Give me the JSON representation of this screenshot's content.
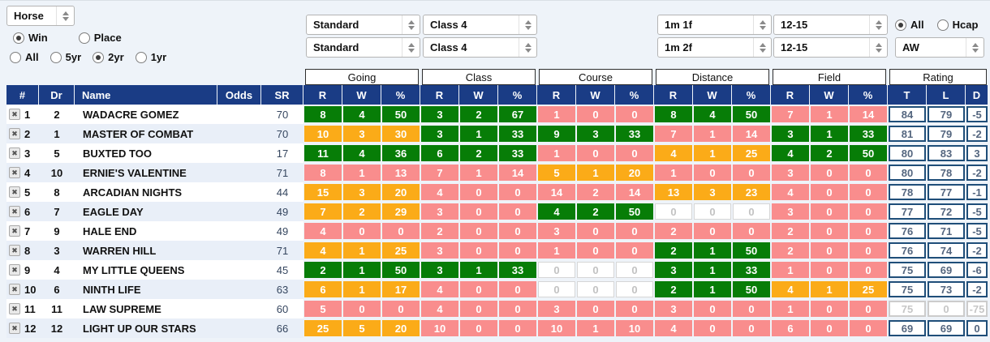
{
  "filters": {
    "entity_select": "Horse",
    "bet_type": {
      "options": [
        "Win",
        "Place"
      ],
      "selected": "Win"
    },
    "age_filter": {
      "options": [
        "All",
        "5yr",
        "2yr",
        "1yr"
      ],
      "selected": "2yr"
    },
    "going_select_1": "Standard",
    "class_select_1": "Class 4",
    "going_select_2": "Standard",
    "class_select_2": "Class 4",
    "distance_select_1": "1m 1f",
    "field_select_1": "12-15",
    "distance_select_2": "1m 2f",
    "field_select_2": "12-15",
    "race_type": {
      "options": [
        "All",
        "Hcap"
      ],
      "selected": "All"
    },
    "surface_select": "AW"
  },
  "colors": {
    "green": "#077d07",
    "amber": "#fbab18",
    "red": "#f98d8d",
    "header_navy": "#1a3c85",
    "rating_border": "#1f4e79"
  },
  "table": {
    "group_headers": [
      "Going",
      "Class",
      "Course",
      "Distance",
      "Field",
      "Rating"
    ],
    "left_headers": [
      "#",
      "Dr",
      "Name",
      "Odds",
      "SR"
    ],
    "stat_subheaders": [
      "R",
      "W",
      "%"
    ],
    "rating_subheaders": [
      "T",
      "L",
      "D"
    ],
    "rows": [
      {
        "num": 1,
        "dr": 2,
        "name": "WADACRE GOMEZ",
        "odds": "",
        "sr": 70,
        "going": {
          "r": 8,
          "w": 4,
          "pct": 50,
          "color": "green"
        },
        "class": {
          "r": 3,
          "w": 2,
          "pct": 67,
          "color": "green"
        },
        "course": {
          "r": 1,
          "w": 0,
          "pct": 0,
          "color": "red"
        },
        "distance": {
          "r": 8,
          "w": 4,
          "pct": 50,
          "color": "green"
        },
        "field": {
          "r": 7,
          "w": 1,
          "pct": 14,
          "color": "red"
        },
        "rating": {
          "t": 84,
          "l": 79,
          "d": -5,
          "muted": false
        }
      },
      {
        "num": 2,
        "dr": 1,
        "name": "MASTER OF COMBAT",
        "odds": "",
        "sr": 70,
        "going": {
          "r": 10,
          "w": 3,
          "pct": 30,
          "color": "amber"
        },
        "class": {
          "r": 3,
          "w": 1,
          "pct": 33,
          "color": "green"
        },
        "course": {
          "r": 9,
          "w": 3,
          "pct": 33,
          "color": "green"
        },
        "distance": {
          "r": 7,
          "w": 1,
          "pct": 14,
          "color": "red"
        },
        "field": {
          "r": 3,
          "w": 1,
          "pct": 33,
          "color": "green"
        },
        "rating": {
          "t": 81,
          "l": 79,
          "d": -2,
          "muted": false
        }
      },
      {
        "num": 3,
        "dr": 5,
        "name": "BUXTED TOO",
        "odds": "",
        "sr": 17,
        "going": {
          "r": 11,
          "w": 4,
          "pct": 36,
          "color": "green"
        },
        "class": {
          "r": 6,
          "w": 2,
          "pct": 33,
          "color": "green"
        },
        "course": {
          "r": 1,
          "w": 0,
          "pct": 0,
          "color": "red"
        },
        "distance": {
          "r": 4,
          "w": 1,
          "pct": 25,
          "color": "amber"
        },
        "field": {
          "r": 4,
          "w": 2,
          "pct": 50,
          "color": "green"
        },
        "rating": {
          "t": 80,
          "l": 83,
          "d": 3,
          "muted": false
        }
      },
      {
        "num": 4,
        "dr": 10,
        "name": "ERNIE'S VALENTINE",
        "odds": "",
        "sr": 71,
        "going": {
          "r": 8,
          "w": 1,
          "pct": 13,
          "color": "red"
        },
        "class": {
          "r": 7,
          "w": 1,
          "pct": 14,
          "color": "red"
        },
        "course": {
          "r": 5,
          "w": 1,
          "pct": 20,
          "color": "amber"
        },
        "distance": {
          "r": 1,
          "w": 0,
          "pct": 0,
          "color": "red"
        },
        "field": {
          "r": 3,
          "w": 0,
          "pct": 0,
          "color": "red"
        },
        "rating": {
          "t": 80,
          "l": 78,
          "d": -2,
          "muted": false
        }
      },
      {
        "num": 5,
        "dr": 8,
        "name": "ARCADIAN NIGHTS",
        "odds": "",
        "sr": 44,
        "going": {
          "r": 15,
          "w": 3,
          "pct": 20,
          "color": "amber"
        },
        "class": {
          "r": 4,
          "w": 0,
          "pct": 0,
          "color": "red"
        },
        "course": {
          "r": 14,
          "w": 2,
          "pct": 14,
          "color": "red"
        },
        "distance": {
          "r": 13,
          "w": 3,
          "pct": 23,
          "color": "amber"
        },
        "field": {
          "r": 4,
          "w": 0,
          "pct": 0,
          "color": "red"
        },
        "rating": {
          "t": 78,
          "l": 77,
          "d": -1,
          "muted": false
        }
      },
      {
        "num": 6,
        "dr": 7,
        "name": "EAGLE DAY",
        "odds": "",
        "sr": 49,
        "going": {
          "r": 7,
          "w": 2,
          "pct": 29,
          "color": "amber"
        },
        "class": {
          "r": 3,
          "w": 0,
          "pct": 0,
          "color": "red"
        },
        "course": {
          "r": 4,
          "w": 2,
          "pct": 50,
          "color": "green"
        },
        "distance": {
          "r": 0,
          "w": 0,
          "pct": 0,
          "color": "none"
        },
        "field": {
          "r": 3,
          "w": 0,
          "pct": 0,
          "color": "red"
        },
        "rating": {
          "t": 77,
          "l": 72,
          "d": -5,
          "muted": false
        }
      },
      {
        "num": 7,
        "dr": 9,
        "name": "HALE END",
        "odds": "",
        "sr": 49,
        "going": {
          "r": 4,
          "w": 0,
          "pct": 0,
          "color": "red"
        },
        "class": {
          "r": 2,
          "w": 0,
          "pct": 0,
          "color": "red"
        },
        "course": {
          "r": 3,
          "w": 0,
          "pct": 0,
          "color": "red"
        },
        "distance": {
          "r": 2,
          "w": 0,
          "pct": 0,
          "color": "red"
        },
        "field": {
          "r": 2,
          "w": 0,
          "pct": 0,
          "color": "red"
        },
        "rating": {
          "t": 76,
          "l": 71,
          "d": -5,
          "muted": false
        }
      },
      {
        "num": 8,
        "dr": 3,
        "name": "WARREN HILL",
        "odds": "",
        "sr": 71,
        "going": {
          "r": 4,
          "w": 1,
          "pct": 25,
          "color": "amber"
        },
        "class": {
          "r": 3,
          "w": 0,
          "pct": 0,
          "color": "red"
        },
        "course": {
          "r": 1,
          "w": 0,
          "pct": 0,
          "color": "red"
        },
        "distance": {
          "r": 2,
          "w": 1,
          "pct": 50,
          "color": "green"
        },
        "field": {
          "r": 2,
          "w": 0,
          "pct": 0,
          "color": "red"
        },
        "rating": {
          "t": 76,
          "l": 74,
          "d": -2,
          "muted": false
        }
      },
      {
        "num": 9,
        "dr": 4,
        "name": "MY LITTLE QUEENS",
        "odds": "",
        "sr": 45,
        "going": {
          "r": 2,
          "w": 1,
          "pct": 50,
          "color": "green"
        },
        "class": {
          "r": 3,
          "w": 1,
          "pct": 33,
          "color": "green"
        },
        "course": {
          "r": 0,
          "w": 0,
          "pct": 0,
          "color": "none"
        },
        "distance": {
          "r": 3,
          "w": 1,
          "pct": 33,
          "color": "green"
        },
        "field": {
          "r": 1,
          "w": 0,
          "pct": 0,
          "color": "red"
        },
        "rating": {
          "t": 75,
          "l": 69,
          "d": -6,
          "muted": false
        }
      },
      {
        "num": 10,
        "dr": 6,
        "name": "NINTH LIFE",
        "odds": "",
        "sr": 63,
        "going": {
          "r": 6,
          "w": 1,
          "pct": 17,
          "color": "amber"
        },
        "class": {
          "r": 4,
          "w": 0,
          "pct": 0,
          "color": "red"
        },
        "course": {
          "r": 0,
          "w": 0,
          "pct": 0,
          "color": "none"
        },
        "distance": {
          "r": 2,
          "w": 1,
          "pct": 50,
          "color": "green"
        },
        "field": {
          "r": 4,
          "w": 1,
          "pct": 25,
          "color": "amber"
        },
        "rating": {
          "t": 75,
          "l": 73,
          "d": -2,
          "muted": false
        }
      },
      {
        "num": 11,
        "dr": 11,
        "name": "LAW SUPREME",
        "odds": "",
        "sr": 60,
        "going": {
          "r": 5,
          "w": 0,
          "pct": 0,
          "color": "red"
        },
        "class": {
          "r": 4,
          "w": 0,
          "pct": 0,
          "color": "red"
        },
        "course": {
          "r": 3,
          "w": 0,
          "pct": 0,
          "color": "red"
        },
        "distance": {
          "r": 3,
          "w": 0,
          "pct": 0,
          "color": "red"
        },
        "field": {
          "r": 1,
          "w": 0,
          "pct": 0,
          "color": "red"
        },
        "rating": {
          "t": 75,
          "l": 0,
          "d": -75,
          "muted": true
        }
      },
      {
        "num": 12,
        "dr": 12,
        "name": "LIGHT UP OUR STARS",
        "odds": "",
        "sr": 66,
        "going": {
          "r": 25,
          "w": 5,
          "pct": 20,
          "color": "amber"
        },
        "class": {
          "r": 10,
          "w": 0,
          "pct": 0,
          "color": "red"
        },
        "course": {
          "r": 10,
          "w": 1,
          "pct": 10,
          "color": "red"
        },
        "distance": {
          "r": 4,
          "w": 0,
          "pct": 0,
          "color": "red"
        },
        "field": {
          "r": 6,
          "w": 0,
          "pct": 0,
          "color": "red"
        },
        "rating": {
          "t": 69,
          "l": 69,
          "d": 0,
          "muted": false
        }
      }
    ]
  }
}
